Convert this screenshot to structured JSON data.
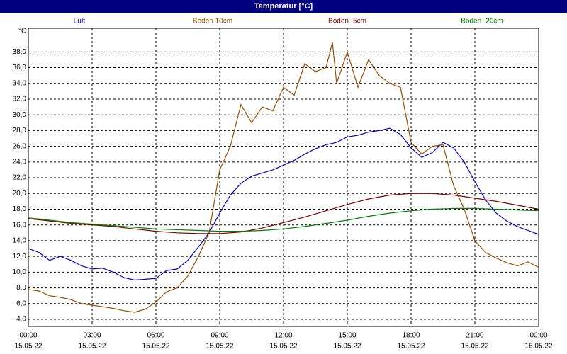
{
  "chart_data": {
    "type": "line",
    "title": "Temperatur [°C]",
    "y_unit": "°C",
    "grid": true,
    "xlim": [
      0,
      24
    ],
    "ylim": [
      3.1,
      41
    ],
    "xticks": [
      {
        "value": 0,
        "label": "00:00"
      },
      {
        "value": 3,
        "label": "03:00"
      },
      {
        "value": 6,
        "label": "06:00"
      },
      {
        "value": 9,
        "label": "09:00"
      },
      {
        "value": 12,
        "label": "12:00"
      },
      {
        "value": 15,
        "label": "15:00"
      },
      {
        "value": 18,
        "label": "18:00"
      },
      {
        "value": 21,
        "label": "21:00"
      },
      {
        "value": 24,
        "label": "00:00"
      }
    ],
    "xtick_dates": [
      "15.05.22",
      "15.05.22",
      "15.05.22",
      "15.05.22",
      "15.05.22",
      "15.05.22",
      "15.05.22",
      "15.05.22",
      "16.05.22"
    ],
    "yticks": [
      {
        "value": 4,
        "label": "4,0"
      },
      {
        "value": 6,
        "label": "6,0"
      },
      {
        "value": 8,
        "label": "8,0"
      },
      {
        "value": 10,
        "label": "10,0"
      },
      {
        "value": 12,
        "label": "12,0"
      },
      {
        "value": 14,
        "label": "14,0"
      },
      {
        "value": 16,
        "label": "16,0"
      },
      {
        "value": 18,
        "label": "18,0"
      },
      {
        "value": 20,
        "label": "20,0"
      },
      {
        "value": 22,
        "label": "22,0"
      },
      {
        "value": 24,
        "label": "24,0"
      },
      {
        "value": 26,
        "label": "26,0"
      },
      {
        "value": 28,
        "label": "28,0"
      },
      {
        "value": 30,
        "label": "30,0"
      },
      {
        "value": 32,
        "label": "32,0"
      },
      {
        "value": 34,
        "label": "34,0"
      },
      {
        "value": 36,
        "label": "36,0"
      },
      {
        "value": 38,
        "label": "38,0"
      }
    ],
    "series": [
      {
        "name": "Luft",
        "color": "#0000c8",
        "x": [
          0,
          0.5,
          1,
          1.5,
          2,
          2.5,
          3,
          3.5,
          4,
          4.5,
          5,
          5.5,
          6,
          6.5,
          7,
          7.5,
          8,
          8.5,
          9,
          9.5,
          10,
          10.5,
          11,
          11.5,
          12,
          12.5,
          13,
          13.5,
          14,
          14.5,
          15,
          15.5,
          16,
          16.5,
          17,
          17.5,
          18,
          18.5,
          19,
          19.5,
          20,
          20.5,
          21,
          21.5,
          22,
          22.5,
          23,
          23.5,
          24
        ],
        "values": [
          13,
          12.5,
          11.5,
          12,
          11.5,
          10.8,
          10.4,
          10.5,
          10,
          9.3,
          9,
          9.1,
          9.2,
          10.2,
          10.4,
          11.5,
          13.2,
          15,
          17.5,
          19.8,
          21.3,
          22.2,
          22.6,
          23,
          23.6,
          24.2,
          25,
          25.7,
          26.2,
          26.5,
          27.2,
          27.4,
          27.8,
          28,
          28.3,
          27.5,
          25.8,
          24.6,
          25.2,
          26.5,
          25.8,
          24,
          21.5,
          19.2,
          17.5,
          16.5,
          15.8,
          15.3,
          14.8
        ]
      },
      {
        "name": "Boden 10cm",
        "color": "#9a4c00",
        "x": [
          0,
          0.5,
          1,
          1.5,
          2,
          2.5,
          3,
          3.5,
          4,
          4.5,
          5,
          5.5,
          6,
          6.5,
          7,
          7.5,
          8,
          8.5,
          9,
          9.5,
          10,
          10.5,
          11,
          11.5,
          12,
          12.5,
          13,
          13.5,
          14,
          14.3,
          14.5,
          15,
          15.5,
          16,
          16.5,
          17,
          17.5,
          18,
          18.5,
          19,
          19.5,
          20,
          20.5,
          21,
          21.5,
          22,
          22.5,
          23,
          23.5,
          24
        ],
        "values": [
          7.8,
          7.6,
          7,
          6.8,
          6.5,
          6,
          5.8,
          5.6,
          5.4,
          5.1,
          4.9,
          5.3,
          6.2,
          7.5,
          8,
          9.5,
          12,
          15,
          23,
          26,
          31.3,
          29,
          31,
          30.5,
          33.5,
          32.5,
          36.5,
          35.5,
          36,
          39.2,
          34,
          38,
          33.5,
          37,
          35,
          34,
          33.5,
          26.5,
          25,
          26,
          26.2,
          21,
          18,
          14,
          12.5,
          11.8,
          11.2,
          10.8,
          11.3,
          10.6
        ]
      },
      {
        "name": "Boden -5cm",
        "color": "#800000",
        "x": [
          0,
          1,
          2,
          3,
          4,
          5,
          6,
          7,
          8,
          9,
          10,
          11,
          12,
          13,
          14,
          15,
          16,
          17,
          18,
          19,
          20,
          21,
          22,
          23,
          24
        ],
        "values": [
          16.8,
          16.5,
          16.2,
          16,
          15.8,
          15.5,
          15.2,
          15,
          14.9,
          14.9,
          15.1,
          15.6,
          16.3,
          17,
          17.8,
          18.6,
          19.3,
          19.8,
          20,
          20,
          19.8,
          19.4,
          19,
          18.5,
          18
        ]
      },
      {
        "name": "Boden -20cm",
        "color": "#008000",
        "x": [
          0,
          1,
          2,
          3,
          4,
          5,
          6,
          7,
          8,
          9,
          10,
          11,
          12,
          13,
          14,
          15,
          16,
          17,
          18,
          19,
          20,
          21,
          22,
          23,
          24
        ],
        "values": [
          16.9,
          16.6,
          16.3,
          16.1,
          15.9,
          15.7,
          15.5,
          15.4,
          15.3,
          15.2,
          15.2,
          15.3,
          15.5,
          15.8,
          16.2,
          16.6,
          17.1,
          17.5,
          17.8,
          18,
          18.1,
          18.1,
          18,
          17.9,
          17.8
        ]
      }
    ]
  }
}
